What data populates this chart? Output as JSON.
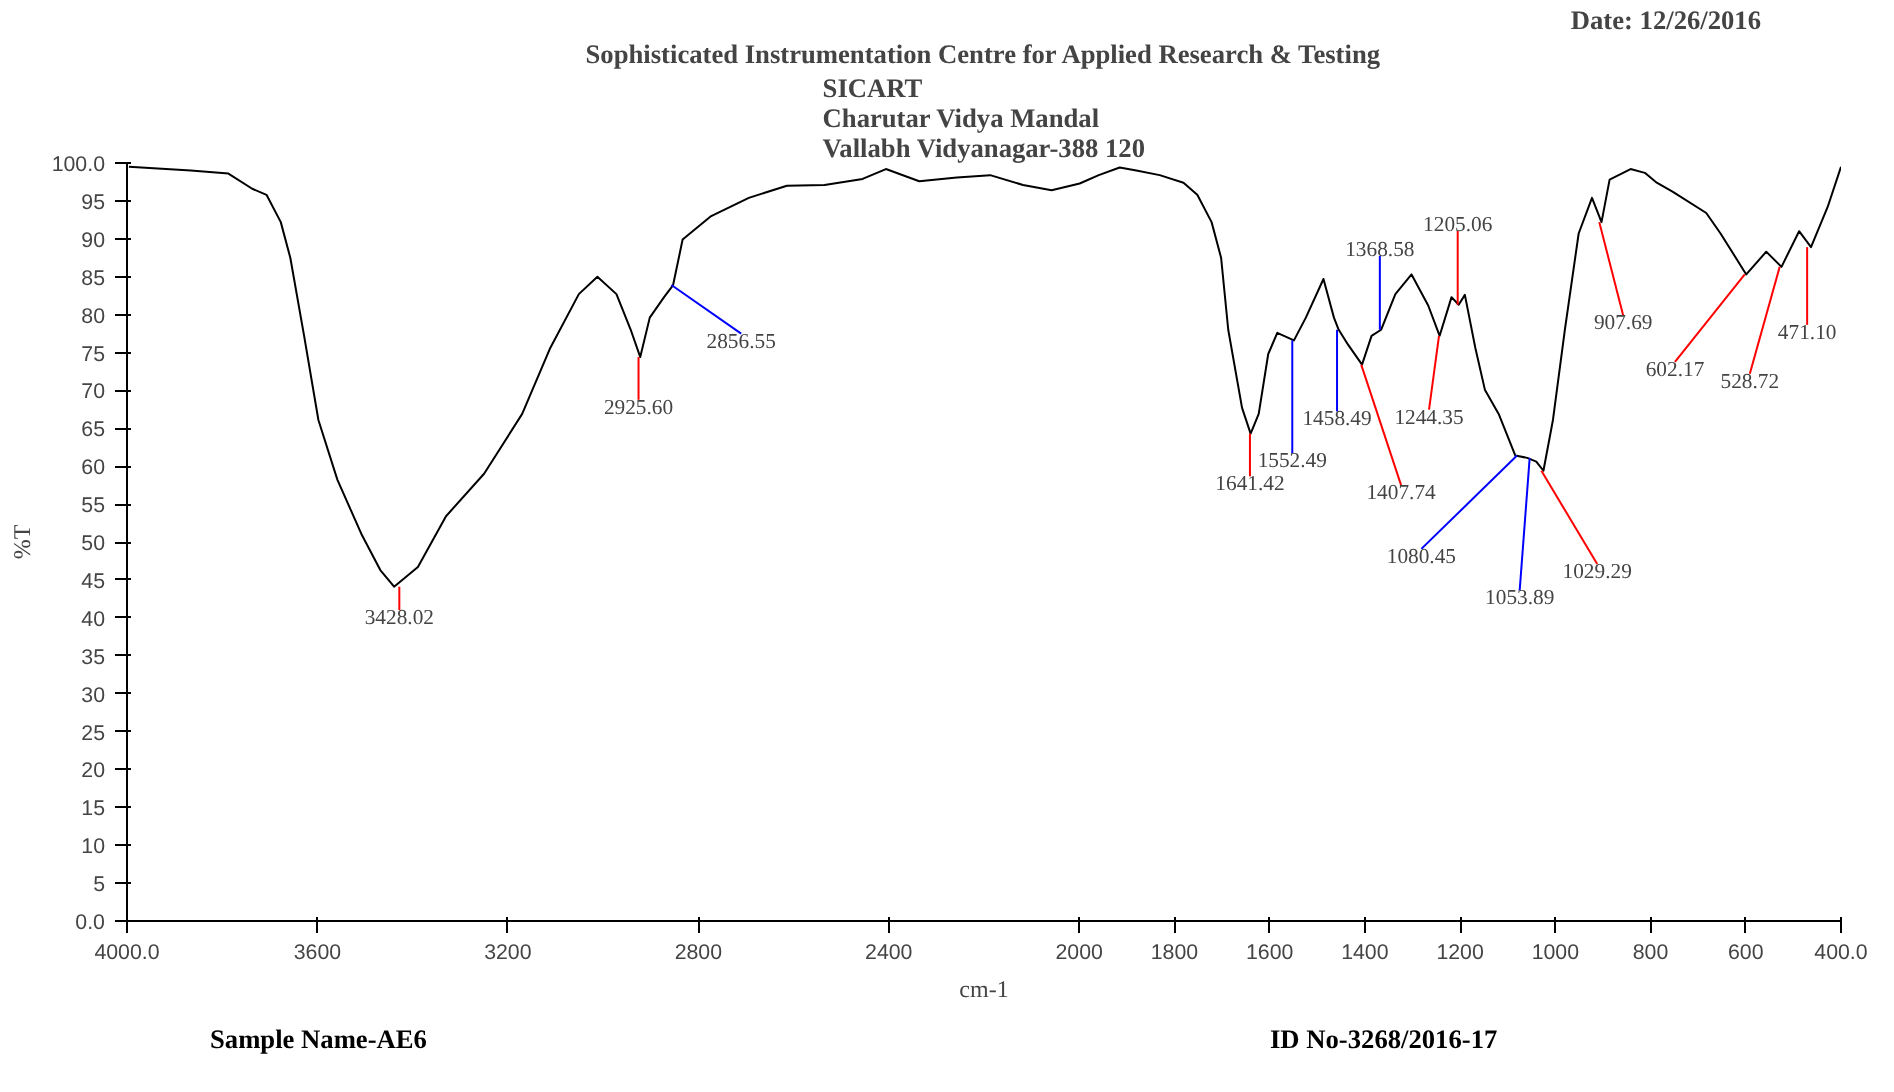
{
  "chart_data": {
    "type": "line",
    "title": "Sophisticated Instrumentation Centre for Applied Research & Testing",
    "subtitle": "SICART\nCharutar Vidya Mandal\nVallabh Vidyanagar-388 120",
    "xlabel": "cm-1",
    "ylabel": "%T",
    "xlim": [
      4000,
      400
    ],
    "ylim": [
      0,
      100
    ],
    "xticks": [
      {
        "value": 4000,
        "label": "4000.0"
      },
      3600,
      3200,
      2800,
      2400,
      2000,
      1800,
      1600,
      1400,
      1200,
      1000,
      800,
      600,
      {
        "value": 400,
        "label": "400.0"
      }
    ],
    "yticks": [
      {
        "value": 0,
        "label": "0.0"
      },
      5,
      10,
      15,
      20,
      25,
      30,
      35,
      40,
      45,
      50,
      55,
      60,
      65,
      70,
      75,
      80,
      85,
      90,
      95,
      {
        "value": 100,
        "label": "100.0"
      }
    ],
    "grid": false,
    "marker": "none",
    "line_style": "solid",
    "series": [
      {
        "color": "#000000",
        "x": [
          3996,
          3866,
          3787,
          3737,
          3707,
          3677,
          3657,
          3628,
          3598,
          3558,
          3508,
          3468,
          3439,
          3389,
          3330,
          3250,
          3170,
          3111,
          3051,
          3012,
          2972,
          2942,
          2922,
          2902,
          2872,
          2853,
          2833,
          2773,
          2694,
          2614,
          2535,
          2455,
          2406,
          2336,
          2257,
          2187,
          2118,
          2058,
          1999,
          1959,
          1915,
          1880,
          1831,
          1781,
          1752,
          1722,
          1702,
          1687,
          1658,
          1640,
          1623,
          1603,
          1584,
          1549,
          1524,
          1487,
          1465,
          1455,
          1435,
          1406,
          1386,
          1366,
          1336,
          1302,
          1267,
          1243,
          1218,
          1203,
          1190,
          1168,
          1148,
          1119,
          1084,
          1059,
          1040,
          1025,
          1005,
          980,
          951,
          923,
          903,
          886,
          842,
          812,
          787,
          753,
          683,
          653,
          599,
          557,
          525,
          488,
          463,
          428,
          400
        ],
        "values": [
          99.5,
          99.0,
          98.6,
          96.6,
          95.8,
          92.2,
          87.5,
          77.2,
          66.1,
          58.2,
          51.1,
          46.3,
          44.1,
          46.7,
          53.4,
          59.0,
          66.9,
          75.6,
          82.7,
          85.0,
          82.7,
          78.0,
          74.4,
          79.6,
          82.3,
          83.9,
          89.9,
          93.0,
          95.4,
          97.0,
          97.1,
          97.9,
          99.2,
          97.6,
          98.1,
          98.4,
          97.1,
          96.4,
          97.3,
          98.4,
          99.4,
          99.0,
          98.4,
          97.4,
          95.8,
          92.2,
          87.5,
          78.0,
          67.7,
          64.3,
          66.9,
          74.8,
          77.6,
          76.6,
          79.6,
          84.7,
          79.6,
          78.0,
          76.0,
          73.4,
          77.2,
          78.0,
          82.7,
          85.3,
          81.2,
          77.2,
          82.3,
          81.3,
          82.6,
          75.6,
          70.1,
          66.9,
          61.4,
          61.1,
          60.6,
          59.4,
          66.1,
          78.0,
          90.7,
          95.4,
          92.2,
          97.8,
          99.2,
          98.7,
          97.4,
          96.2,
          93.4,
          90.7,
          85.3,
          88.3,
          86.3,
          91.0,
          88.9,
          94.2,
          99.5
        ]
      }
    ],
    "annotations": [
      "Date: 12/26/2016",
      "Sample Name-AE6",
      "ID No-3268/2016-17",
      {
        "text": "3428.02",
        "x": 3428.02,
        "y": 44.1
      },
      {
        "text": "2925.60",
        "x": 2925.6,
        "y": 74.4
      },
      {
        "text": "2856.55",
        "x": 2856.55,
        "y": 83.9
      },
      {
        "text": "1641.42",
        "x": 1641.42,
        "y": 64.3
      },
      {
        "text": "1552.49",
        "x": 1552.49,
        "y": 76.6
      },
      {
        "text": "1458.49",
        "x": 1458.49,
        "y": 78.0
      },
      {
        "text": "1407.74",
        "x": 1407.74,
        "y": 73.4
      },
      {
        "text": "1368.58",
        "x": 1368.58,
        "y": 78.0
      },
      {
        "text": "1244.35",
        "x": 1244.35,
        "y": 77.2
      },
      {
        "text": "1205.06",
        "x": 1205.06,
        "y": 81.3
      },
      {
        "text": "1080.45",
        "x": 1080.45,
        "y": 61.4
      },
      {
        "text": "1053.89",
        "x": 1053.89,
        "y": 61.1
      },
      {
        "text": "1029.29",
        "x": 1029.29,
        "y": 59.4
      },
      {
        "text": "907.69",
        "x": 907.69,
        "y": 92.2
      },
      {
        "text": "602.17",
        "x": 602.17,
        "y": 85.3
      },
      {
        "text": "528.72",
        "x": 528.72,
        "y": 86.3
      },
      {
        "text": "471.10",
        "x": 471.1,
        "y": 88.9
      }
    ]
  }
}
